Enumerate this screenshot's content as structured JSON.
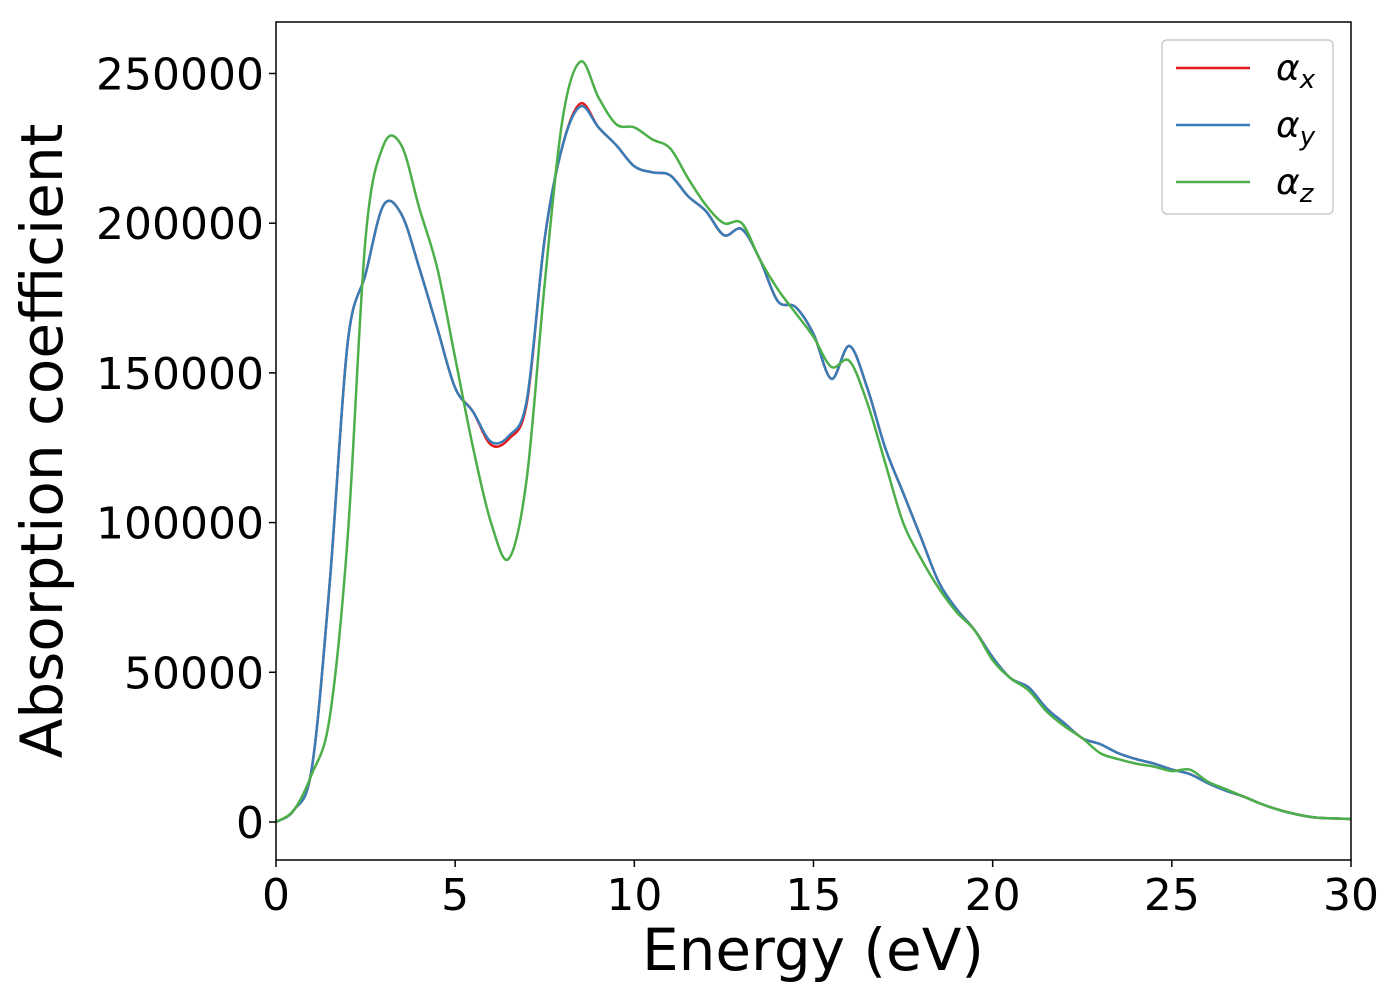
{
  "chart_data": {
    "type": "line",
    "xlabel": "Energy (eV)",
    "ylabel": "Absorption coefficient",
    "x": [
      0,
      0.5,
      1,
      1.5,
      2,
      2.5,
      3,
      3.5,
      4,
      4.5,
      5,
      5.5,
      6,
      6.5,
      7,
      7.5,
      8,
      8.5,
      9,
      9.5,
      10,
      10.5,
      11,
      11.5,
      12,
      12.5,
      13,
      13.5,
      14,
      14.5,
      15,
      15.5,
      16,
      16.5,
      17,
      17.5,
      18,
      18.5,
      19,
      19.5,
      20,
      20.5,
      21,
      21.5,
      22,
      22.5,
      23,
      23.5,
      24,
      24.5,
      25,
      25.5,
      26,
      26.5,
      27,
      27.5,
      28,
      28.5,
      29,
      29.5,
      30
    ],
    "series": [
      {
        "name": "αx",
        "color": "#e41a1c",
        "values": [
          0,
          4000,
          18000,
          80000,
          160000,
          183000,
          206000,
          203000,
          185000,
          165000,
          145000,
          137000,
          126000,
          128000,
          140000,
          195000,
          226000,
          240000,
          232000,
          226000,
          219000,
          217000,
          216000,
          209000,
          204000,
          196000,
          198000,
          188000,
          174000,
          172000,
          163000,
          148000,
          159000,
          145000,
          125000,
          110000,
          95000,
          80000,
          71000,
          64000,
          55000,
          48000,
          45000,
          38000,
          33000,
          28000,
          26000,
          23000,
          21000,
          19500,
          17500,
          16000,
          13000,
          10500,
          8500,
          6000,
          4000,
          2500,
          1500,
          1200,
          1000
        ]
      },
      {
        "name": "αy",
        "color": "#377eb8",
        "values": [
          0,
          4000,
          18000,
          80000,
          160000,
          183000,
          206000,
          203000,
          185000,
          165000,
          145000,
          137000,
          127000,
          129000,
          141000,
          195000,
          226000,
          239000,
          232000,
          226000,
          219000,
          217000,
          216000,
          209000,
          204000,
          196000,
          198000,
          188000,
          174000,
          172000,
          163000,
          148000,
          159000,
          145000,
          125000,
          110000,
          95000,
          80000,
          71000,
          64000,
          55000,
          48000,
          45000,
          38000,
          33000,
          28000,
          26000,
          23000,
          21000,
          19500,
          17500,
          16000,
          13000,
          10500,
          8500,
          6000,
          4000,
          2500,
          1500,
          1200,
          1000
        ]
      },
      {
        "name": "αz",
        "color": "#4daf4a",
        "values": [
          0,
          4000,
          16000,
          35000,
          95000,
          195000,
          226000,
          226000,
          205000,
          185000,
          155000,
          125000,
          100000,
          88000,
          115000,
          180000,
          235000,
          254000,
          242000,
          233000,
          232000,
          228000,
          225000,
          215000,
          206000,
          200000,
          200000,
          188000,
          178000,
          170000,
          162000,
          152000,
          154000,
          140000,
          120000,
          100000,
          88000,
          78000,
          70000,
          64000,
          54000,
          48000,
          44000,
          37000,
          32000,
          28000,
          23000,
          21000,
          19500,
          18500,
          17000,
          17500,
          13500,
          11000,
          8500,
          6000,
          4000,
          2500,
          1500,
          1200,
          1000
        ]
      }
    ],
    "xlim": [
      0,
      30
    ],
    "xticks": [
      0,
      5,
      10,
      15,
      20,
      25,
      30
    ],
    "ylim": [
      -12700,
      267200
    ],
    "yticks": [
      0,
      50000,
      100000,
      150000,
      200000,
      250000
    ],
    "legend": "upper right",
    "grid": false
  }
}
